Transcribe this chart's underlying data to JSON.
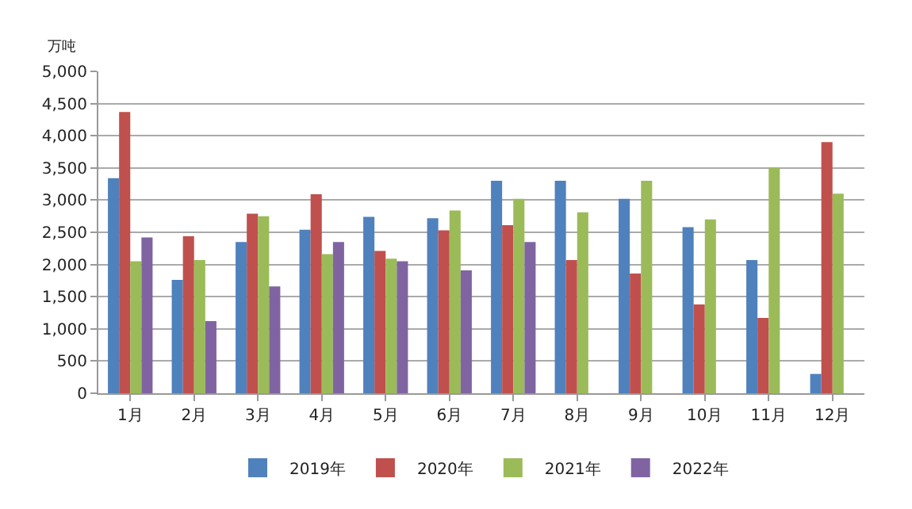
{
  "chart_data": {
    "type": "bar",
    "annotations": [
      "万吨"
    ],
    "categories": [
      "1月",
      "2月",
      "3月",
      "4月",
      "5月",
      "6月",
      "7月",
      "8月",
      "9月",
      "10月",
      "11月",
      "12月"
    ],
    "series": [
      {
        "name": "2019年",
        "color": "#4f81bd",
        "values": [
          3340,
          1760,
          2350,
          2540,
          2740,
          2720,
          3300,
          3300,
          3020,
          2580,
          2070,
          300
        ]
      },
      {
        "name": "2020年",
        "color": "#c0504d",
        "values": [
          4370,
          2440,
          2790,
          3090,
          2210,
          2530,
          2610,
          2070,
          1860,
          1380,
          1170,
          3900
        ]
      },
      {
        "name": "2021年",
        "color": "#9bbb59",
        "values": [
          2050,
          2070,
          2750,
          2160,
          2090,
          2840,
          3020,
          2810,
          3300,
          2700,
          3510,
          3100
        ]
      },
      {
        "name": "2022年",
        "color": "#8064a2",
        "values": [
          2420,
          1120,
          1660,
          2350,
          2050,
          1910,
          2350,
          null,
          null,
          null,
          null,
          null
        ]
      }
    ],
    "ylim": [
      0,
      5000
    ],
    "yticks": [
      {
        "value": 0,
        "label": "0"
      },
      {
        "value": 500,
        "label": "500"
      },
      {
        "value": 1000,
        "label": "1,000"
      },
      {
        "value": 1500,
        "label": "1,500"
      },
      {
        "value": 2000,
        "label": "2,000"
      },
      {
        "value": 2500,
        "label": "2,500"
      },
      {
        "value": 3000,
        "label": "3,000"
      },
      {
        "value": 3500,
        "label": "3,500"
      },
      {
        "value": 4000,
        "label": "4,000"
      },
      {
        "value": 4500,
        "label": "4,500"
      },
      {
        "value": 5000,
        "label": "5,000"
      }
    ],
    "grid": "y",
    "legend": "bottom"
  }
}
